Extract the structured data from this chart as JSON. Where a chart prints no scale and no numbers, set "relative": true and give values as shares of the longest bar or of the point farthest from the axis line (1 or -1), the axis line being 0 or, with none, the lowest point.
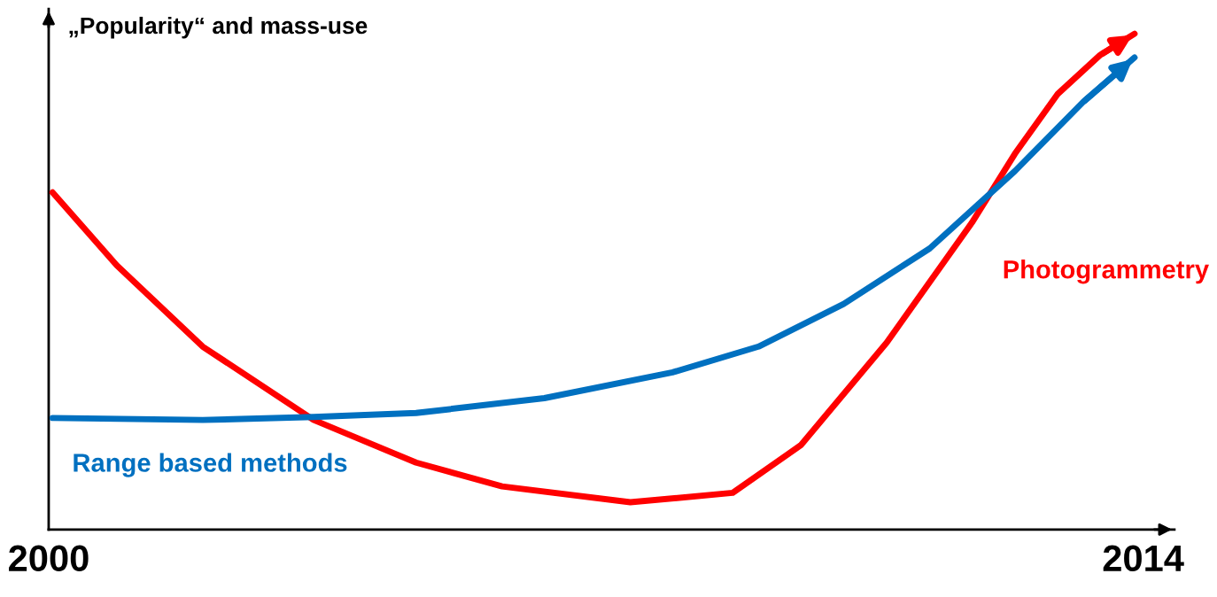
{
  "chart_data": {
    "type": "line",
    "relative": true,
    "ylabel": "„Popularity“ and mass-use",
    "xlim": [
      2000,
      2014.4
    ],
    "xticks": [
      2000,
      2014
    ],
    "grid": false,
    "legend": false,
    "marker": "none",
    "line_style": "solid",
    "series": [
      {
        "name": "Photogrammetry",
        "color": "#ff0000",
        "x": [
          2000.05,
          2000.87,
          2001.97,
          2003.39,
          2004.7,
          2005.8,
          2007.44,
          2008.75,
          2009.62,
          2010.72,
          2011.81,
          2012.36,
          2012.91,
          2013.45,
          2013.89
        ],
        "values": [
          0.68,
          0.533,
          0.369,
          0.221,
          0.135,
          0.087,
          0.055,
          0.074,
          0.17,
          0.377,
          0.619,
          0.758,
          0.879,
          0.957,
          1
        ]
      },
      {
        "name": "Range based methods",
        "color": "#0070c0",
        "x": [
          2000.05,
          2001.97,
          2003.39,
          2004.7,
          2006.34,
          2007.98,
          2009.08,
          2010.17,
          2011.27,
          2012.36,
          2013.23,
          2013.89
        ],
        "values": [
          0.225,
          0.221,
          0.227,
          0.235,
          0.265,
          0.317,
          0.369,
          0.455,
          0.567,
          0.723,
          0.862,
          0.952
        ]
      }
    ]
  }
}
